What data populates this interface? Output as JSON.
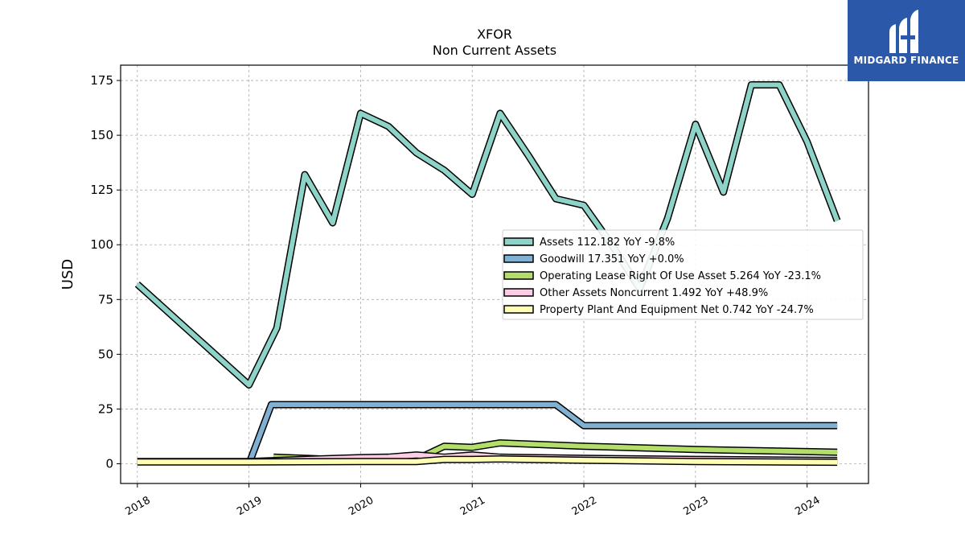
{
  "chart_data": {
    "type": "line",
    "title": "XFOR",
    "subtitle": "Non Current  Assets",
    "ylabel": "USD",
    "xlabel": "",
    "ylim": [
      -9,
      182
    ],
    "xlim": [
      2017.85,
      2024.55
    ],
    "yticks": [
      0,
      25,
      50,
      75,
      100,
      125,
      150,
      175
    ],
    "xticks": [
      "2018",
      "2019",
      "2020",
      "2021",
      "2022",
      "2023",
      "2024"
    ],
    "grid": true,
    "legend_position": "center-right",
    "series": [
      {
        "name": "Assets  112.182 YoY -9.8%",
        "color": "#8dd3c7",
        "points": [
          [
            2018.0,
            82
          ],
          [
            2019.0,
            36
          ],
          [
            2019.25,
            62
          ],
          [
            2019.5,
            132
          ],
          [
            2019.75,
            110
          ],
          [
            2020.0,
            160
          ],
          [
            2020.25,
            154
          ],
          [
            2020.5,
            142
          ],
          [
            2020.75,
            134
          ],
          [
            2021.0,
            123
          ],
          [
            2021.25,
            160
          ],
          [
            2021.5,
            141
          ],
          [
            2021.75,
            121
          ],
          [
            2022.0,
            118
          ],
          [
            2022.25,
            100
          ],
          [
            2022.5,
            80
          ],
          [
            2022.75,
            112
          ],
          [
            2023.0,
            155
          ],
          [
            2023.25,
            124
          ],
          [
            2023.5,
            173
          ],
          [
            2023.75,
            173
          ],
          [
            2024.0,
            147
          ],
          [
            2024.27,
            111
          ]
        ]
      },
      {
        "name": "Goodwill  17.351 YoY +0.0%",
        "color": "#80b1d3",
        "points": [
          [
            2019.0,
            0
          ],
          [
            2019.2,
            27
          ],
          [
            2019.5,
            27
          ],
          [
            2019.75,
            27
          ],
          [
            2020.0,
            27
          ],
          [
            2020.5,
            27
          ],
          [
            2021.0,
            27
          ],
          [
            2021.5,
            27
          ],
          [
            2021.75,
            27
          ],
          [
            2022.0,
            17.4
          ],
          [
            2022.5,
            17.4
          ],
          [
            2023.0,
            17.4
          ],
          [
            2023.5,
            17.4
          ],
          [
            2024.27,
            17.4
          ]
        ]
      },
      {
        "name": "Operating Lease Right Of Use Asset  5.264 YoY -23.1%",
        "color": "#b3de69",
        "points": [
          [
            2019.22,
            3
          ],
          [
            2019.5,
            2.5
          ],
          [
            2019.75,
            2
          ],
          [
            2020.0,
            2
          ],
          [
            2020.5,
            2
          ],
          [
            2020.75,
            8
          ],
          [
            2021.0,
            7.5
          ],
          [
            2021.25,
            9.5
          ],
          [
            2022.0,
            8
          ],
          [
            2023.0,
            6.5
          ],
          [
            2024.27,
            5.3
          ]
        ]
      },
      {
        "name": "Other Assets Noncurrent  1.492 YoY +48.9%",
        "color": "#fccde5",
        "points": [
          [
            2018.0,
            1
          ],
          [
            2019.0,
            1
          ],
          [
            2019.5,
            2
          ],
          [
            2020.0,
            2.8
          ],
          [
            2020.25,
            3
          ],
          [
            2020.5,
            4
          ],
          [
            2020.75,
            3
          ],
          [
            2021.0,
            4
          ],
          [
            2021.25,
            3
          ],
          [
            2022.0,
            2.5
          ],
          [
            2023.0,
            2
          ],
          [
            2024.27,
            1.5
          ]
        ]
      },
      {
        "name": "Property Plant And Equipment Net  0.742 YoY -24.7%",
        "color": "#ffffb3",
        "points": [
          [
            2018.0,
            0.8
          ],
          [
            2019.0,
            0.8
          ],
          [
            2020.0,
            1
          ],
          [
            2020.5,
            1
          ],
          [
            2020.75,
            2
          ],
          [
            2021.0,
            2
          ],
          [
            2021.25,
            2.2
          ],
          [
            2022.0,
            1.6
          ],
          [
            2023.0,
            1
          ],
          [
            2024.27,
            0.7
          ]
        ]
      }
    ]
  },
  "logo": {
    "text": "MIDGARD FINANCE"
  }
}
